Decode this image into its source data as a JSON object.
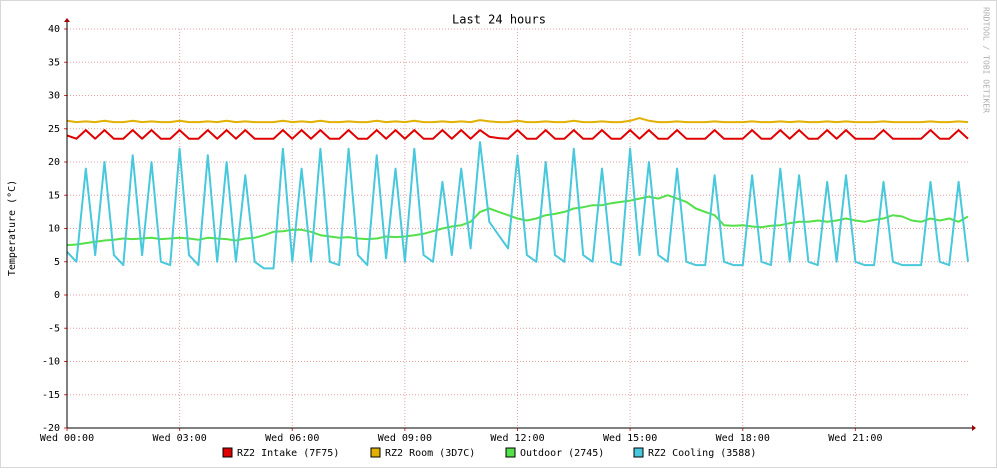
{
  "chart_data": {
    "type": "line",
    "title": "Last 24 hours",
    "y_label": "Temperature (°C)",
    "watermark": "RRDTOOL / TOBI OETIKER",
    "xlim": [
      0,
      24
    ],
    "xticks": [
      {
        "value": 0,
        "label": "Wed 00:00"
      },
      {
        "value": 3,
        "label": "Wed 03:00"
      },
      {
        "value": 6,
        "label": "Wed 06:00"
      },
      {
        "value": 9,
        "label": "Wed 09:00"
      },
      {
        "value": 12,
        "label": "Wed 12:00"
      },
      {
        "value": 15,
        "label": "Wed 15:00"
      },
      {
        "value": 18,
        "label": "Wed 18:00"
      },
      {
        "value": 21,
        "label": "Wed 21:00"
      }
    ],
    "ylim": [
      -20,
      40
    ],
    "yticks": [
      -20,
      -15,
      -10,
      -5,
      0,
      5,
      10,
      15,
      20,
      25,
      30,
      35,
      40
    ],
    "grid": true,
    "x": [
      0,
      0.25,
      0.5,
      0.75,
      1,
      1.25,
      1.5,
      1.75,
      2,
      2.25,
      2.5,
      2.75,
      3,
      3.25,
      3.5,
      3.75,
      4,
      4.25,
      4.5,
      4.75,
      5,
      5.25,
      5.5,
      5.75,
      6,
      6.25,
      6.5,
      6.75,
      7,
      7.25,
      7.5,
      7.75,
      8,
      8.25,
      8.5,
      8.75,
      9,
      9.25,
      9.5,
      9.75,
      10,
      10.25,
      10.5,
      10.75,
      11,
      11.25,
      11.5,
      11.75,
      12,
      12.25,
      12.5,
      12.75,
      13,
      13.25,
      13.5,
      13.75,
      14,
      14.25,
      14.5,
      14.75,
      15,
      15.25,
      15.5,
      15.75,
      16,
      16.25,
      16.5,
      16.75,
      17,
      17.25,
      17.5,
      17.75,
      18,
      18.25,
      18.5,
      18.75,
      19,
      19.25,
      19.5,
      19.75,
      20,
      20.25,
      20.5,
      20.75,
      21,
      21.25,
      21.5,
      21.75,
      22,
      22.25,
      22.5,
      22.75,
      23,
      23.25,
      23.5,
      23.75,
      24
    ],
    "series": [
      {
        "name": "RZ2 Intake (7F75)",
        "color": "#e00000",
        "values": [
          24,
          23.5,
          24.8,
          23.5,
          24.8,
          23.5,
          23.5,
          24.8,
          23.5,
          24.8,
          23.5,
          23.5,
          24.8,
          23.5,
          23.5,
          24.8,
          23.5,
          24.8,
          23.5,
          24.8,
          23.5,
          23.5,
          23.5,
          24.8,
          23.5,
          24.8,
          23.5,
          24.8,
          23.5,
          23.5,
          24.8,
          23.5,
          23.5,
          24.8,
          23.5,
          24.8,
          23.5,
          24.8,
          23.5,
          23.5,
          24.8,
          23.5,
          24.8,
          23.5,
          24.8,
          23.8,
          23.6,
          23.5,
          24.8,
          23.5,
          23.5,
          24.8,
          23.5,
          23.5,
          24.8,
          23.5,
          23.5,
          24.8,
          23.5,
          23.5,
          24.8,
          23.5,
          24.8,
          23.5,
          23.5,
          24.8,
          23.5,
          23.5,
          23.5,
          24.8,
          23.5,
          23.5,
          23.5,
          24.8,
          23.5,
          23.5,
          24.8,
          23.5,
          24.8,
          23.5,
          23.5,
          24.8,
          23.5,
          24.8,
          23.5,
          23.5,
          23.5,
          24.8,
          23.5,
          23.5,
          23.5,
          23.5,
          24.8,
          23.5,
          23.5,
          24.8,
          23.5
        ]
      },
      {
        "name": "RZ2 Room (3D7C)",
        "color": "#e2b000",
        "values": [
          26.2,
          26,
          26.1,
          26,
          26.2,
          26,
          26,
          26.2,
          26,
          26.1,
          26,
          26,
          26.2,
          26,
          26,
          26.1,
          26,
          26.2,
          26,
          26.1,
          26,
          26,
          26,
          26.2,
          26,
          26.1,
          26,
          26.2,
          26,
          26,
          26.1,
          26,
          26,
          26.2,
          26,
          26.1,
          26,
          26.2,
          26,
          26,
          26.1,
          26,
          26.1,
          26,
          26.3,
          26.1,
          26,
          26,
          26.2,
          26,
          26,
          26.1,
          26,
          26,
          26.2,
          26,
          26,
          26.1,
          26,
          26,
          26.2,
          26.6,
          26.2,
          26,
          26,
          26.1,
          26,
          26,
          26,
          26.1,
          26,
          26,
          26,
          26.1,
          26,
          26,
          26.1,
          26,
          26.1,
          26,
          26,
          26.1,
          26,
          26.1,
          26,
          26,
          26,
          26.1,
          26,
          26,
          26,
          26,
          26.1,
          26,
          26,
          26.1,
          26
        ]
      },
      {
        "name": "Outdoor (2745)",
        "color": "#54e048",
        "values": [
          7.5,
          7.6,
          7.8,
          8,
          8.2,
          8.3,
          8.5,
          8.4,
          8.5,
          8.6,
          8.4,
          8.5,
          8.6,
          8.5,
          8.3,
          8.6,
          8.5,
          8.4,
          8.2,
          8.5,
          8.6,
          9,
          9.5,
          9.6,
          9.8,
          9.8,
          9.5,
          9,
          8.8,
          8.6,
          8.7,
          8.5,
          8.4,
          8.5,
          8.8,
          8.7,
          8.8,
          9,
          9.2,
          9.6,
          10,
          10.3,
          10.5,
          11,
          12.5,
          13,
          12.5,
          12,
          11.5,
          11.2,
          11.5,
          12,
          12.2,
          12.5,
          13,
          13.2,
          13.5,
          13.5,
          13.8,
          14,
          14.2,
          14.5,
          14.8,
          14.5,
          15,
          14.5,
          14,
          13,
          12.5,
          12,
          10.5,
          10.4,
          10.5,
          10.3,
          10.2,
          10.4,
          10.5,
          10.8,
          11,
          11,
          11.2,
          11,
          11.2,
          11.5,
          11.2,
          11,
          11.3,
          11.5,
          12,
          11.8,
          11.2,
          11,
          11.5,
          11.2,
          11.5,
          11,
          11.8
        ]
      },
      {
        "name": "RZ2 Cooling (3588)",
        "color": "#48c8dc",
        "values": [
          6.5,
          5,
          19,
          6,
          20,
          6,
          4.5,
          21,
          6,
          20,
          5,
          4.5,
          22,
          6,
          4.5,
          21,
          5,
          20,
          5,
          18,
          5,
          4,
          4,
          22,
          5,
          19,
          5,
          22,
          5,
          4.5,
          22,
          6,
          4.5,
          21,
          5.5,
          19,
          5,
          22,
          6,
          5,
          17,
          6,
          19,
          7,
          23,
          11,
          9,
          7,
          21,
          6,
          5,
          20,
          6,
          5,
          22,
          6,
          5,
          19,
          5,
          4.5,
          22,
          6,
          20,
          6,
          5,
          19,
          5,
          4.5,
          4.5,
          18,
          5,
          4.5,
          4.5,
          18,
          5,
          4.5,
          19,
          5,
          18,
          5,
          4.5,
          17,
          5,
          18,
          5,
          4.5,
          4.5,
          17,
          5,
          4.5,
          4.5,
          4.5,
          17,
          5,
          4.5,
          17,
          5
        ]
      }
    ]
  }
}
